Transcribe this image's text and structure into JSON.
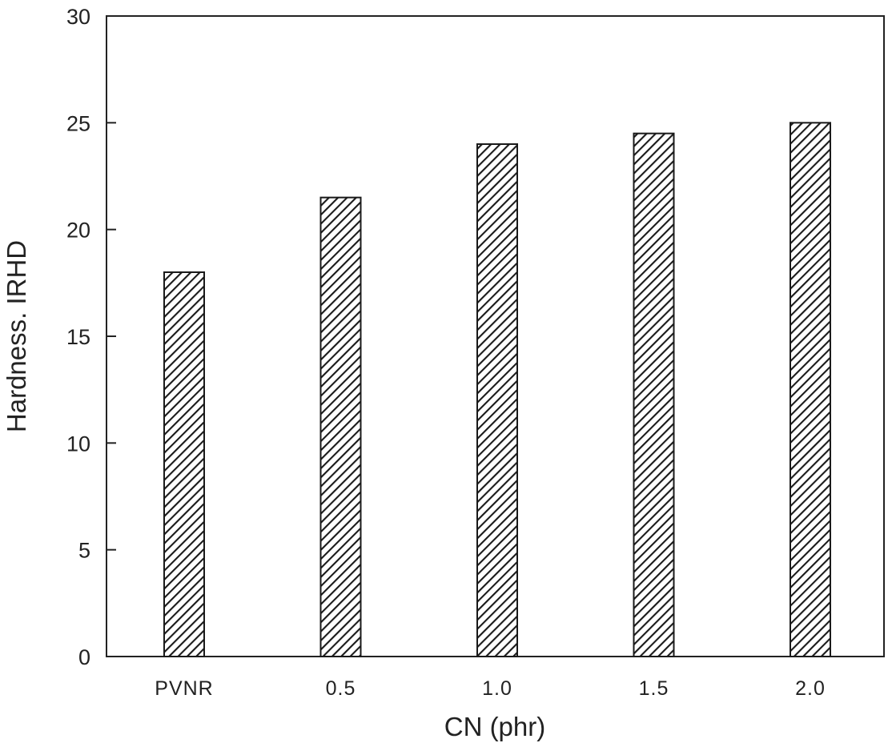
{
  "chart_data": {
    "type": "bar",
    "title": "",
    "xlabel": "CN (phr)",
    "ylabel": "Hardness. IRHD",
    "categories": [
      "PVNR",
      "0.5",
      "1.0",
      "1.5",
      "2.0"
    ],
    "values": [
      18,
      21.5,
      24,
      24.5,
      25
    ],
    "ylim": [
      0,
      30
    ],
    "yticks": [
      "0",
      "5",
      "10",
      "15",
      "20",
      "25",
      "30"
    ],
    "grid": false,
    "legend": "none",
    "bar_pattern": "diagonal-hatch",
    "colors": {
      "bar_stroke": "#1a1a1a",
      "hatch": "#1a1a1a",
      "axis": "#222222",
      "background": "#ffffff"
    }
  }
}
